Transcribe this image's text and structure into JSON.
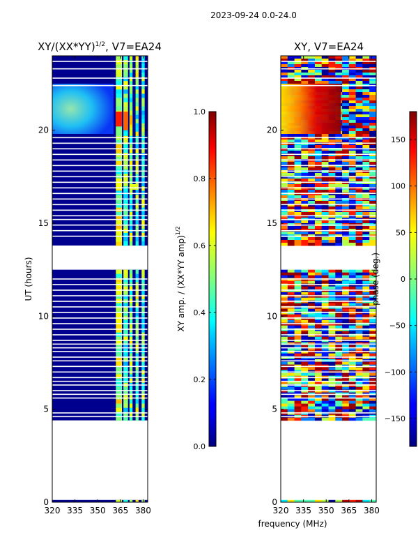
{
  "figure": {
    "suptitle": "2023-09-24 0.0-24.0",
    "xlabel_shared": "frequency (MHz)"
  },
  "chart_data": [
    {
      "type": "heatmap",
      "title": "XY/(XX*YY)",
      "title_sup": "1/2",
      "title_suffix": ", V7=EA24",
      "ylabel": "UT (hours)",
      "xlim": [
        320,
        383
      ],
      "ylim": [
        0,
        24
      ],
      "xticks": [
        320,
        335,
        350,
        365,
        380
      ],
      "yticks": [
        0,
        5,
        10,
        15,
        20
      ],
      "colorbar": {
        "label": "XY amp. / (XX*YY amp)",
        "label_sup": "1/2",
        "range": [
          0.0,
          1.0
        ],
        "ticks": [
          "0.0",
          "0.2",
          "0.4",
          "0.6",
          "0.8",
          "1.0"
        ]
      },
      "data_coverage_ut": [
        [
          0.0,
          0.12
        ],
        [
          4.4,
          12.5
        ],
        [
          13.8,
          24.0
        ]
      ],
      "band_features_mhz": [
        [
          362,
          366
        ],
        [
          367,
          370
        ],
        [
          371,
          373
        ],
        [
          375,
          377
        ],
        [
          379,
          381
        ]
      ]
    },
    {
      "type": "heatmap",
      "title": "XY, V7=EA24",
      "xlim": [
        320,
        383
      ],
      "ylim": [
        0,
        24
      ],
      "xticks": [
        320,
        335,
        350,
        365,
        380
      ],
      "yticks": [
        0,
        5,
        10,
        15,
        20
      ],
      "colorbar": {
        "label": "phase (deg.)",
        "range": [
          -180,
          180
        ],
        "ticks": [
          "150",
          "100",
          "50",
          "0",
          "−50",
          "−100",
          "−150"
        ]
      },
      "data_coverage_ut": [
        [
          0.0,
          0.12
        ],
        [
          4.4,
          12.5
        ],
        [
          13.8,
          24.0
        ]
      ]
    }
  ]
}
